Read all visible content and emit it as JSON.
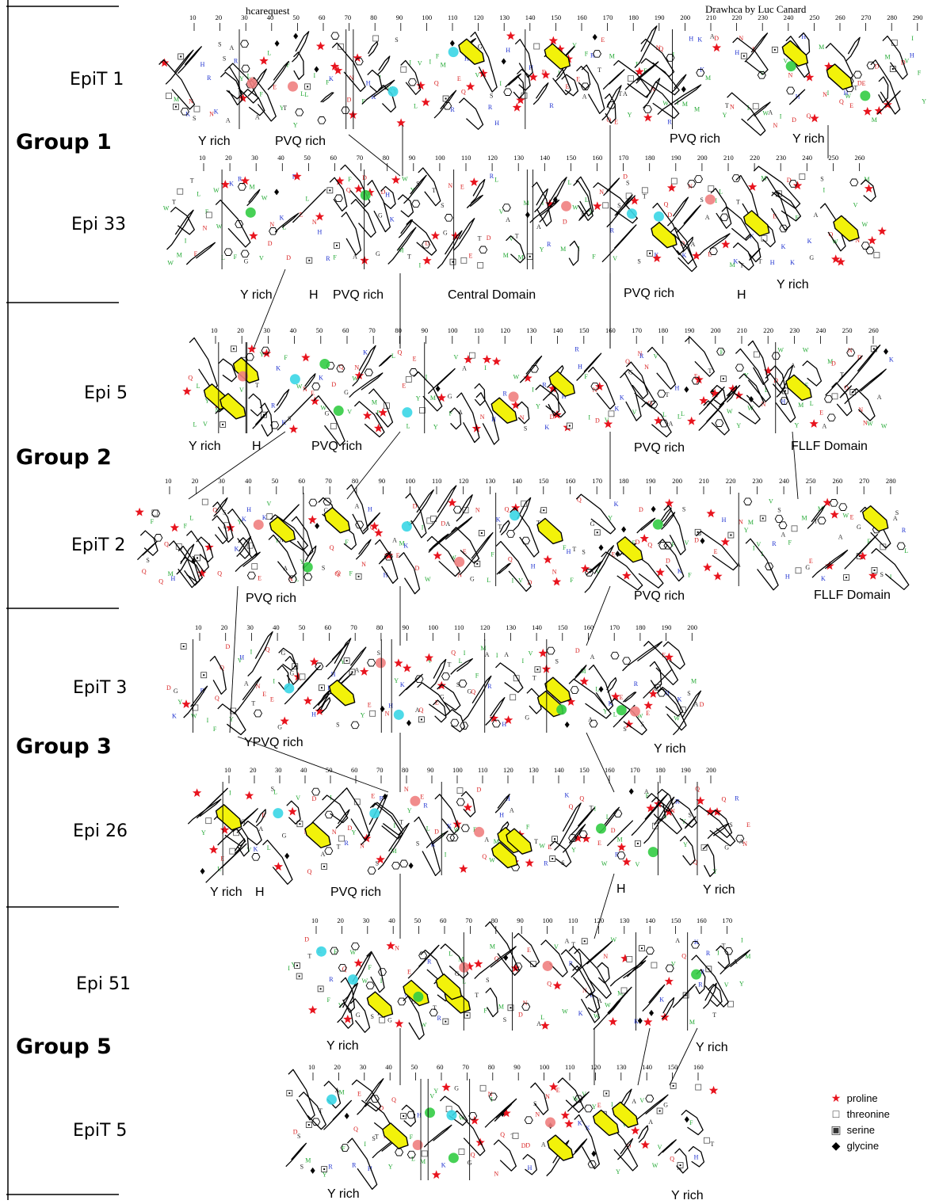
{
  "header": {
    "left_credit": "hcarequest",
    "right_credit": "Drawhca by Luc Canard"
  },
  "groups": [
    {
      "label": "Group 1"
    },
    {
      "label": "Group 2"
    },
    {
      "label": "Group 3"
    },
    {
      "label": "Group 5"
    }
  ],
  "proteins": [
    {
      "name": "EpiT 1",
      "ticks": [
        "10",
        "20",
        "30",
        "40",
        "50",
        "60",
        "70",
        "80",
        "90",
        "100",
        "110",
        "120",
        "130",
        "140",
        "150",
        "160",
        "170",
        "180",
        "190",
        "200",
        "210",
        "220",
        "230",
        "240",
        "250",
        "260",
        "270",
        "280",
        "290"
      ],
      "domains": [
        "Y rich",
        "PVQ rich",
        "PVQ rich",
        "Y rich"
      ]
    },
    {
      "name": "Epi 33",
      "ticks": [
        "10",
        "20",
        "30",
        "40",
        "50",
        "60",
        "70",
        "80",
        "90",
        "100",
        "110",
        "120",
        "130",
        "140",
        "150",
        "160",
        "170",
        "180",
        "190",
        "200",
        "210",
        "220",
        "230",
        "240",
        "250",
        "260"
      ],
      "domains": [
        "Y rich",
        "H",
        "PVQ rich",
        "Central Domain",
        "PVQ rich",
        "H",
        "Y rich"
      ]
    },
    {
      "name": "Epi 5",
      "ticks": [
        "10",
        "20",
        "30",
        "40",
        "50",
        "60",
        "70",
        "80",
        "90",
        "100",
        "110",
        "120",
        "130",
        "140",
        "150",
        "160",
        "170",
        "180",
        "190",
        "200",
        "210",
        "220",
        "230",
        "240",
        "250",
        "260"
      ],
      "domains": [
        "Y rich",
        "H",
        "PVQ rich",
        "PVQ rich",
        "FLLF Domain"
      ]
    },
    {
      "name": "EpiT 2",
      "ticks": [
        "10",
        "20",
        "30",
        "40",
        "50",
        "60",
        "70",
        "80",
        "90",
        "100",
        "110",
        "120",
        "130",
        "140",
        "150",
        "160",
        "170",
        "180",
        "190",
        "200",
        "210",
        "220",
        "230",
        "240",
        "250",
        "260",
        "270",
        "280"
      ],
      "domains": [
        "PVQ rich",
        "PVQ rich",
        "FLLF Domain"
      ]
    },
    {
      "name": "EpiT 3",
      "ticks": [
        "10",
        "20",
        "30",
        "40",
        "50",
        "60",
        "70",
        "80",
        "90",
        "100",
        "110",
        "120",
        "130",
        "140",
        "150",
        "160",
        "170",
        "180",
        "190",
        "200"
      ],
      "domains": [
        "YPVQ rich",
        "Y rich"
      ]
    },
    {
      "name": "Epi 26",
      "ticks": [
        "10",
        "20",
        "30",
        "40",
        "50",
        "60",
        "70",
        "80",
        "90",
        "100",
        "110",
        "120",
        "130",
        "140",
        "150",
        "160",
        "170",
        "180",
        "190",
        "200"
      ],
      "domains": [
        "Y rich",
        "H",
        "PVQ rich",
        "H",
        "Y rich"
      ]
    },
    {
      "name": "Epi 51",
      "ticks": [
        "10",
        "20",
        "30",
        "40",
        "50",
        "60",
        "70",
        "80",
        "90",
        "100",
        "110",
        "120",
        "130",
        "140",
        "150",
        "160",
        "170"
      ],
      "domains": [
        "Y rich",
        "Y rich"
      ]
    },
    {
      "name": "EpiT 5",
      "ticks": [
        "10",
        "20",
        "30",
        "40",
        "50",
        "60",
        "70",
        "80",
        "90",
        "100",
        "110",
        "120",
        "130",
        "140",
        "150",
        "160"
      ],
      "domains": [
        "Y rich",
        "Y rich"
      ]
    }
  ],
  "legend": {
    "items": [
      {
        "symbol": "★",
        "label": "proline",
        "color": "#e8141e"
      },
      {
        "symbol": "□",
        "label": "threonine",
        "color": "#333333"
      },
      {
        "symbol": "▣",
        "label": "serine",
        "color": "#333333"
      },
      {
        "symbol": "◆",
        "label": "glycine",
        "color": "#000000"
      }
    ]
  },
  "colors": {
    "hydrophobic_cluster_fill": "#f2f20a",
    "basic_highlight": "#3ad6e6",
    "acidic_highlight": "#f08080",
    "green_highlight": "#33cc44",
    "proline_star": "#e8141e",
    "residue_red": "#d81e1e",
    "residue_blue": "#1c2fcf",
    "residue_green": "#22a833"
  }
}
